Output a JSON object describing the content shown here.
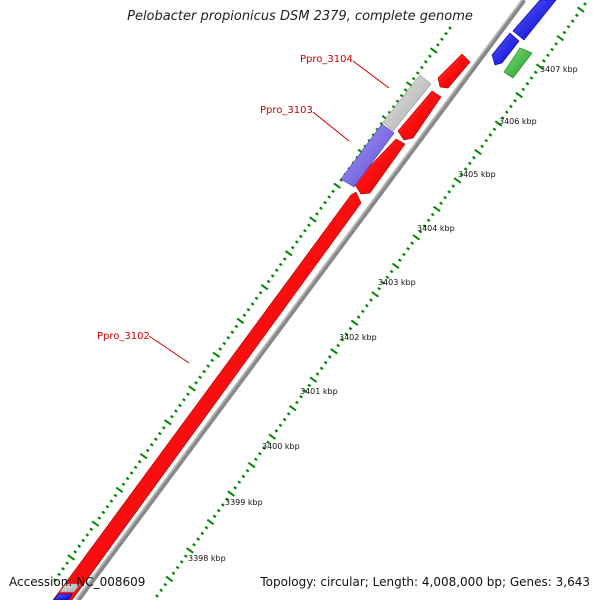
{
  "title": "Pelobacter propionicus DSM 2379, complete genome",
  "footer": {
    "accession": "Accession: NC_008609",
    "topology": "Topology: circular; Length: 4,008,000 bp; Genes: 3,643"
  },
  "genes": [
    {
      "label": "Ppro_3102",
      "color": "#ff0000"
    },
    {
      "label": "Ppro_3103",
      "color": "#7b68ee"
    },
    {
      "label": "Ppro_3104",
      "color": "#c8c8c8"
    }
  ],
  "ticks": [
    {
      "label": "3398 kbp"
    },
    {
      "label": "3399 kbp"
    },
    {
      "label": "3400 kbp"
    },
    {
      "label": "3401 kbp"
    },
    {
      "label": "3402 kbp"
    },
    {
      "label": "3403 kbp"
    },
    {
      "label": "3404 kbp"
    },
    {
      "label": "3405 kbp"
    },
    {
      "label": "3406 kbp"
    },
    {
      "label": "3407 kbp"
    }
  ],
  "colors": {
    "forward_gene": "#ff0000",
    "hypothetical_gene": "#7b68ee",
    "unknown_gene": "#c8c8c8",
    "blue_gene": "#0000ff",
    "green_gene": "#33bb33",
    "backbone": "#999999",
    "tick": "#008800",
    "label": "#cc0000"
  }
}
